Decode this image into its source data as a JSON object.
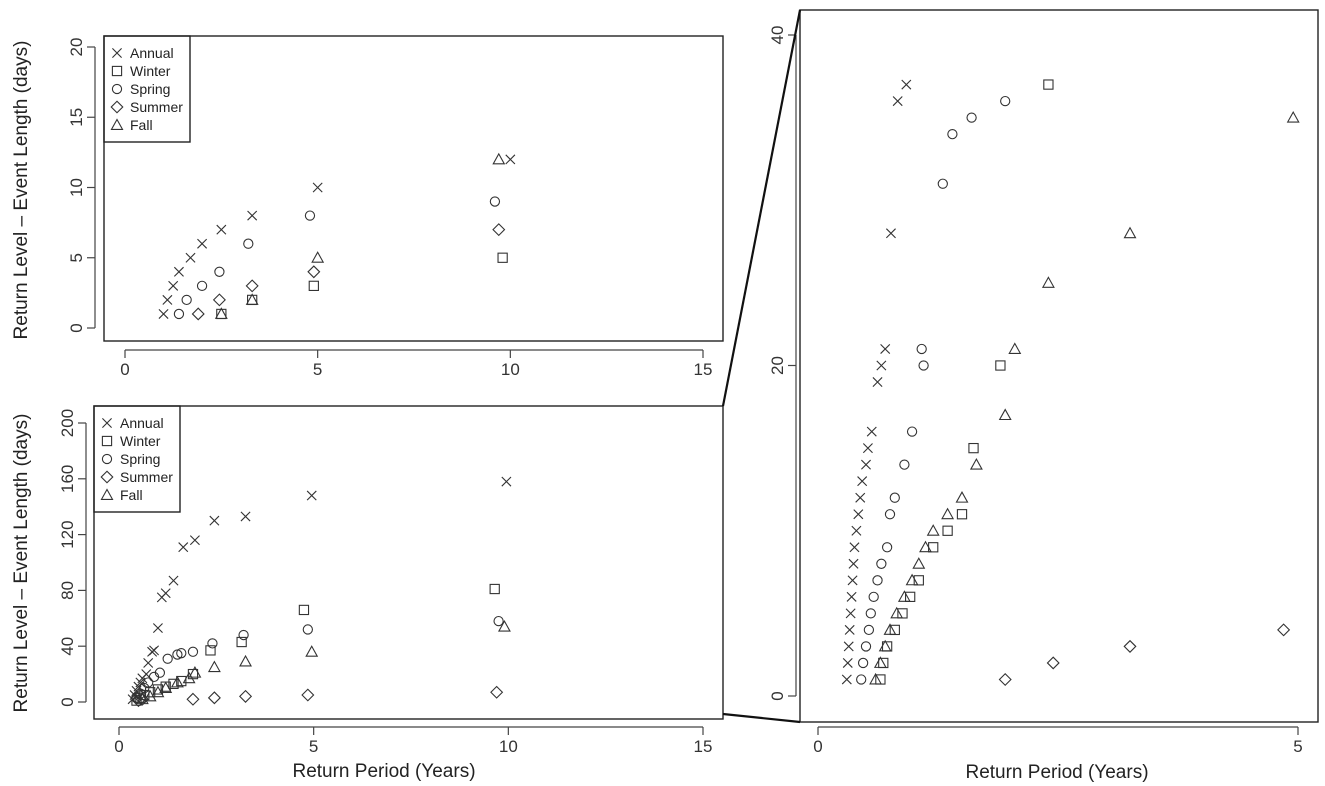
{
  "chart_data": [
    {
      "id": "top-left",
      "type": "scatter",
      "xlabel": "",
      "ylabel": "Return Level – Event Length (days)",
      "xlim": [
        0,
        15
      ],
      "ylim": [
        0,
        20
      ],
      "xticks": [
        0,
        5,
        10,
        15
      ],
      "yticks": [
        0,
        5,
        10,
        15,
        20
      ],
      "legend": {
        "position": "top-left"
      },
      "series": [
        {
          "name": "Annual",
          "marker": "x",
          "points": [
            [
              1.0,
              1
            ],
            [
              1.1,
              2
            ],
            [
              1.25,
              3
            ],
            [
              1.4,
              4
            ],
            [
              1.7,
              5
            ],
            [
              2.0,
              6
            ],
            [
              2.5,
              7
            ],
            [
              3.3,
              8
            ],
            [
              5.0,
              10
            ],
            [
              10.0,
              12
            ]
          ]
        },
        {
          "name": "Winter",
          "marker": "square",
          "points": [
            [
              2.5,
              1
            ],
            [
              3.3,
              2
            ],
            [
              4.9,
              3
            ],
            [
              9.8,
              5
            ]
          ]
        },
        {
          "name": "Spring",
          "marker": "circle",
          "points": [
            [
              1.4,
              1
            ],
            [
              1.6,
              2
            ],
            [
              2.0,
              3
            ],
            [
              2.45,
              4
            ],
            [
              3.2,
              6
            ],
            [
              4.8,
              8
            ],
            [
              9.6,
              9
            ]
          ]
        },
        {
          "name": "Summer",
          "marker": "diamond",
          "points": [
            [
              1.9,
              1
            ],
            [
              2.45,
              2
            ],
            [
              3.3,
              3
            ],
            [
              4.9,
              4
            ],
            [
              9.7,
              7
            ]
          ]
        },
        {
          "name": "Fall",
          "marker": "triangle",
          "points": [
            [
              2.5,
              1
            ],
            [
              3.3,
              2
            ],
            [
              5.0,
              5
            ],
            [
              9.7,
              12
            ]
          ]
        }
      ]
    },
    {
      "id": "bottom-left",
      "type": "scatter",
      "xlabel": "Return Period (Years)",
      "ylabel": "Return Level – Event Length (days)",
      "xlim": [
        0,
        15
      ],
      "ylim": [
        0,
        200
      ],
      "xticks": [
        0,
        5,
        10,
        15
      ],
      "yticks": [
        0,
        40,
        80,
        120,
        160,
        200
      ],
      "legend": {
        "position": "top-left"
      },
      "series": [
        {
          "name": "Annual",
          "marker": "x",
          "points": [
            [
              0.35,
              2
            ],
            [
              0.4,
              5
            ],
            [
              0.45,
              8
            ],
            [
              0.5,
              11
            ],
            [
              0.55,
              14
            ],
            [
              0.6,
              17
            ],
            [
              0.7,
              20
            ],
            [
              0.75,
              28
            ],
            [
              0.85,
              36
            ],
            [
              0.9,
              37
            ],
            [
              1.0,
              53
            ],
            [
              1.1,
              75
            ],
            [
              1.2,
              78
            ],
            [
              1.4,
              87
            ],
            [
              1.65,
              111
            ],
            [
              1.95,
              116
            ],
            [
              2.45,
              130
            ],
            [
              3.25,
              133
            ],
            [
              4.95,
              148
            ],
            [
              9.95,
              158
            ]
          ]
        },
        {
          "name": "Winter",
          "marker": "square",
          "points": [
            [
              0.45,
              1
            ],
            [
              0.55,
              3
            ],
            [
              0.65,
              5
            ],
            [
              0.8,
              7
            ],
            [
              1.0,
              9
            ],
            [
              1.2,
              11
            ],
            [
              1.4,
              13
            ],
            [
              1.6,
              15
            ],
            [
              1.9,
              20
            ],
            [
              2.35,
              37
            ],
            [
              3.15,
              43
            ],
            [
              4.75,
              66
            ],
            [
              9.65,
              81
            ]
          ]
        },
        {
          "name": "Spring",
          "marker": "circle",
          "points": [
            [
              0.45,
              3
            ],
            [
              0.55,
              6
            ],
            [
              0.65,
              10
            ],
            [
              0.75,
              14
            ],
            [
              0.9,
              18
            ],
            [
              1.05,
              21
            ],
            [
              1.25,
              31
            ],
            [
              1.5,
              34
            ],
            [
              1.6,
              35
            ],
            [
              1.9,
              36
            ],
            [
              2.4,
              42
            ],
            [
              3.2,
              48
            ],
            [
              4.85,
              52
            ],
            [
              9.75,
              58
            ]
          ]
        },
        {
          "name": "Summer",
          "marker": "diamond",
          "points": [
            [
              0.5,
              1
            ],
            [
              0.6,
              2
            ],
            [
              1.9,
              2
            ],
            [
              2.45,
              3
            ],
            [
              3.25,
              4
            ],
            [
              4.85,
              5
            ],
            [
              9.7,
              7
            ]
          ]
        },
        {
          "name": "Fall",
          "marker": "triangle",
          "points": [
            [
              0.6,
              2
            ],
            [
              0.8,
              4
            ],
            [
              1.0,
              7
            ],
            [
              1.2,
              10
            ],
            [
              1.5,
              14
            ],
            [
              1.8,
              17
            ],
            [
              1.95,
              21
            ],
            [
              2.45,
              25
            ],
            [
              3.25,
              29
            ],
            [
              4.95,
              36
            ],
            [
              9.9,
              54
            ]
          ]
        }
      ]
    },
    {
      "id": "zoom-right",
      "type": "scatter",
      "xlabel": "Return Period (Years)",
      "ylabel": "",
      "xlim": [
        0,
        5
      ],
      "ylim": [
        0,
        40
      ],
      "xticks": [
        0,
        5
      ],
      "yticks": [
        0,
        20,
        40
      ],
      "legend": null,
      "series": [
        {
          "name": "Annual",
          "marker": "x",
          "points": [
            [
              0.3,
              1
            ],
            [
              0.31,
              2
            ],
            [
              0.32,
              3
            ],
            [
              0.33,
              4
            ],
            [
              0.34,
              5
            ],
            [
              0.35,
              6
            ],
            [
              0.36,
              7
            ],
            [
              0.37,
              8
            ],
            [
              0.38,
              9
            ],
            [
              0.4,
              10
            ],
            [
              0.42,
              11
            ],
            [
              0.44,
              12
            ],
            [
              0.46,
              13
            ],
            [
              0.5,
              14
            ],
            [
              0.52,
              15
            ],
            [
              0.56,
              16
            ],
            [
              0.62,
              19
            ],
            [
              0.66,
              20
            ],
            [
              0.7,
              21
            ],
            [
              0.76,
              28
            ],
            [
              0.83,
              36
            ],
            [
              0.92,
              37
            ]
          ]
        },
        {
          "name": "Winter",
          "marker": "square",
          "points": [
            [
              0.65,
              1
            ],
            [
              0.68,
              2
            ],
            [
              0.72,
              3
            ],
            [
              0.8,
              4
            ],
            [
              0.88,
              5
            ],
            [
              0.96,
              6
            ],
            [
              1.05,
              7
            ],
            [
              1.2,
              9
            ],
            [
              1.35,
              10
            ],
            [
              1.5,
              11
            ],
            [
              1.62,
              15
            ],
            [
              1.9,
              20
            ],
            [
              2.4,
              37
            ]
          ]
        },
        {
          "name": "Spring",
          "marker": "circle",
          "points": [
            [
              0.45,
              1
            ],
            [
              0.47,
              2
            ],
            [
              0.5,
              3
            ],
            [
              0.53,
              4
            ],
            [
              0.55,
              5
            ],
            [
              0.58,
              6
            ],
            [
              0.62,
              7
            ],
            [
              0.66,
              8
            ],
            [
              0.72,
              9
            ],
            [
              0.75,
              11
            ],
            [
              0.8,
              12
            ],
            [
              0.9,
              14
            ],
            [
              0.98,
              16
            ],
            [
              1.1,
              20
            ],
            [
              1.08,
              21
            ],
            [
              1.3,
              31
            ],
            [
              1.4,
              34
            ],
            [
              1.6,
              35
            ],
            [
              1.95,
              36
            ]
          ]
        },
        {
          "name": "Summer",
          "marker": "diamond",
          "points": [
            [
              1.95,
              1
            ],
            [
              2.45,
              2
            ],
            [
              3.25,
              3
            ],
            [
              4.85,
              4
            ]
          ]
        },
        {
          "name": "Fall",
          "marker": "triangle",
          "points": [
            [
              0.6,
              1
            ],
            [
              0.65,
              2
            ],
            [
              0.7,
              3
            ],
            [
              0.75,
              4
            ],
            [
              0.82,
              5
            ],
            [
              0.9,
              6
            ],
            [
              0.98,
              7
            ],
            [
              1.05,
              8
            ],
            [
              1.12,
              9
            ],
            [
              1.2,
              10
            ],
            [
              1.35,
              11
            ],
            [
              1.5,
              12
            ],
            [
              1.65,
              14
            ],
            [
              1.95,
              17
            ],
            [
              2.05,
              21
            ],
            [
              2.4,
              25
            ],
            [
              3.25,
              28
            ],
            [
              4.95,
              35
            ]
          ]
        }
      ]
    }
  ]
}
